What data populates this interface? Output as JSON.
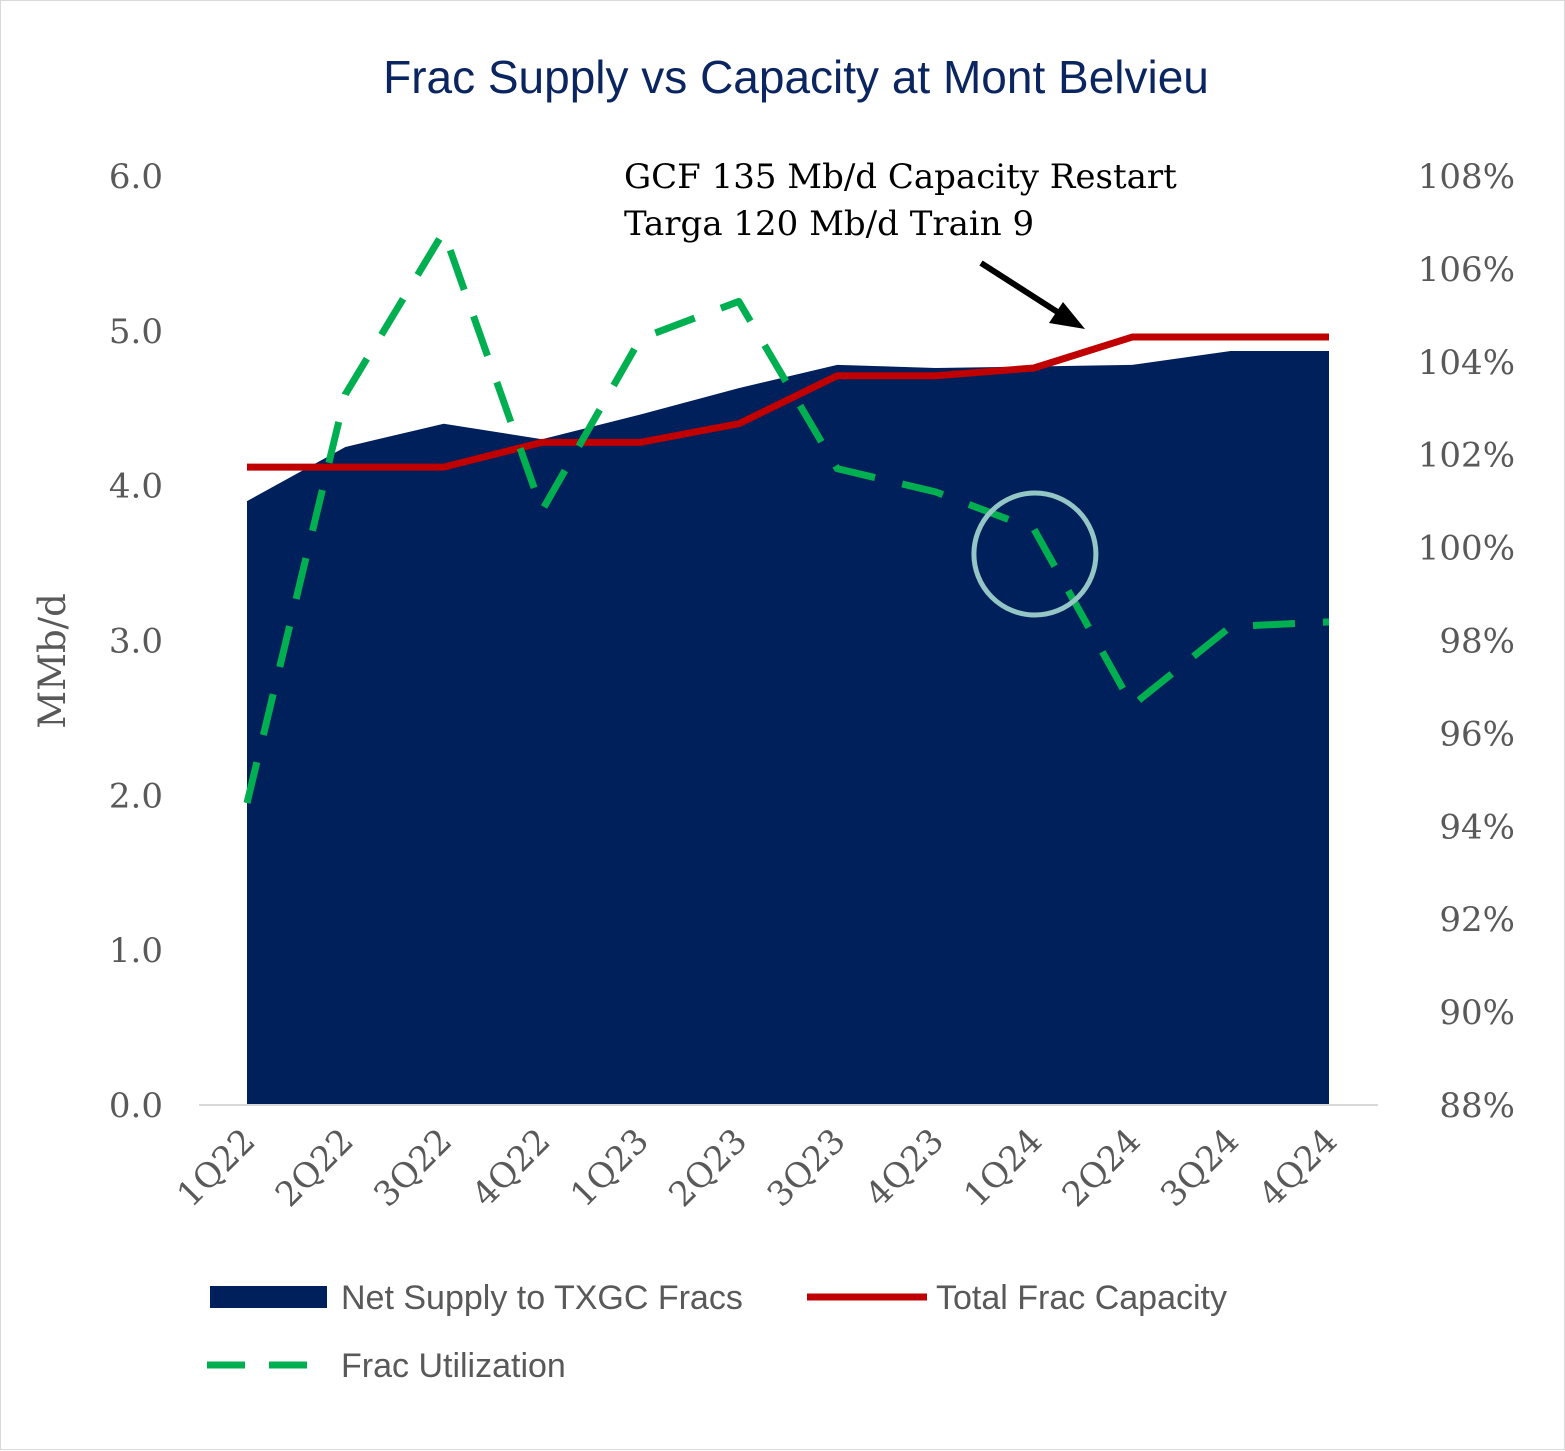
{
  "chart_data": {
    "type": "area",
    "title": "Frac Supply vs Capacity at Mont Belvieu",
    "categories": [
      "1Q22",
      "2Q22",
      "3Q22",
      "4Q22",
      "1Q23",
      "2Q23",
      "3Q23",
      "4Q23",
      "1Q24",
      "2Q24",
      "3Q24",
      "4Q24"
    ],
    "ylabel": "MMb/d",
    "ylim": [
      0,
      6
    ],
    "y_ticks": [
      "0.0",
      "1.0",
      "2.0",
      "3.0",
      "4.0",
      "5.0",
      "6.0"
    ],
    "y2lim": [
      88,
      108
    ],
    "y2_ticks": [
      "88%",
      "90%",
      "92%",
      "94%",
      "96%",
      "98%",
      "100%",
      "102%",
      "104%",
      "106%",
      "108%"
    ],
    "series": [
      {
        "name": "Net Supply to TXGC Fracs",
        "kind": "area",
        "axis": "left",
        "color": "#00205b",
        "values": [
          3.9,
          4.25,
          4.4,
          4.3,
          4.46,
          4.63,
          4.78,
          4.76,
          4.77,
          4.78,
          4.87,
          4.87
        ]
      },
      {
        "name": "Total Frac Capacity",
        "kind": "line",
        "axis": "left",
        "color": "#c00000",
        "values": [
          4.12,
          4.12,
          4.12,
          4.28,
          4.28,
          4.4,
          4.71,
          4.71,
          4.76,
          4.96,
          4.96,
          4.96
        ]
      },
      {
        "name": "Frac Utilization",
        "kind": "dashed-line",
        "axis": "right",
        "color": "#00b050",
        "values": [
          94.5,
          103.3,
          106.8,
          100.8,
          104.5,
          105.3,
          101.7,
          101.2,
          100.4,
          96.6,
          98.3,
          98.4
        ]
      }
    ],
    "annotation": {
      "lines": [
        "GCF 135 Mb/d Capacity Restart",
        "Targa 120 Mb/d Train 9"
      ],
      "arrow_to_category": "2Q24"
    },
    "highlight": {
      "category": "1Q24",
      "color": "#93c6c4"
    },
    "legend_placement": "bottom",
    "colors": {
      "axis_text": "#595959",
      "title": "#0b2561",
      "annotation_text": "#000000"
    }
  }
}
